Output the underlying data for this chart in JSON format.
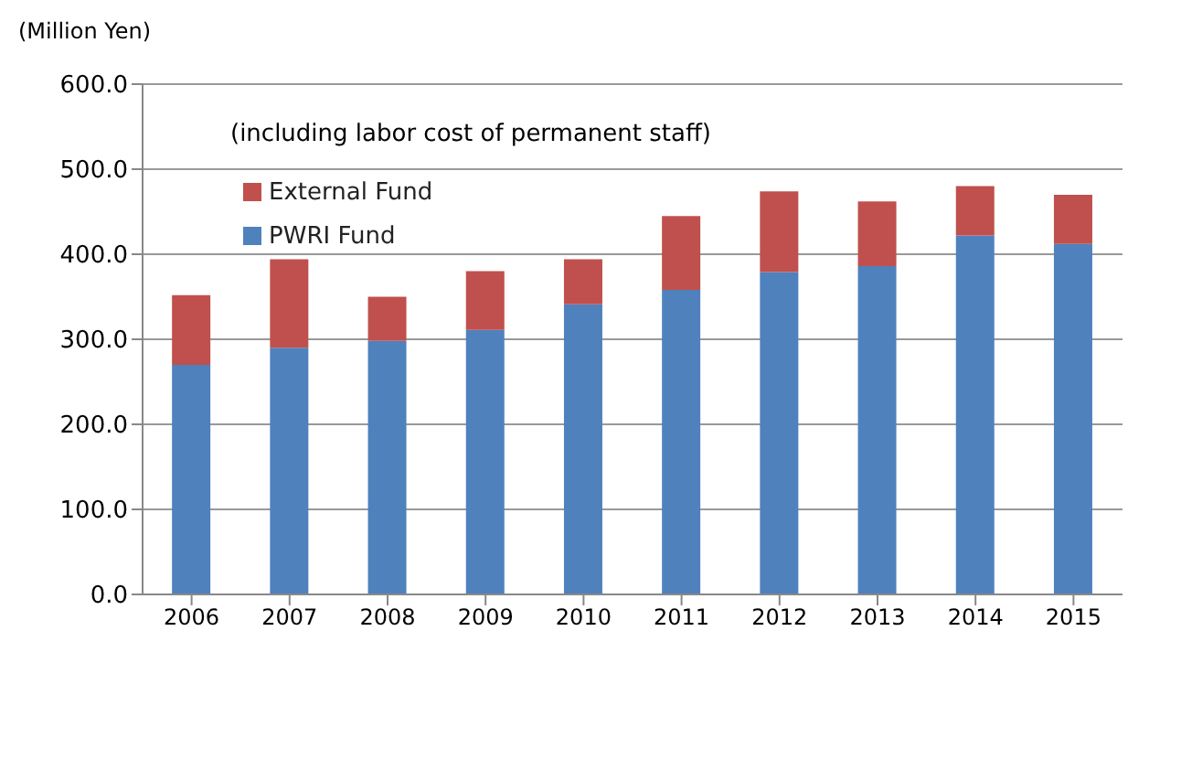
{
  "chart_data": {
    "type": "bar",
    "stacked": true,
    "ylabel": "(Million Yen)",
    "annotations": [
      "(including labor cost of permanent staff)"
    ],
    "categories": [
      "2006",
      "2007",
      "2008",
      "2009",
      "2010",
      "2011",
      "2012",
      "2013",
      "2014",
      "2015"
    ],
    "series": [
      {
        "name": "PWRI Fund",
        "color": "#4f81bd",
        "values": [
          270,
          290,
          298,
          311,
          341,
          358,
          379,
          386,
          422,
          412
        ]
      },
      {
        "name": "External Fund",
        "color": "#c0504d",
        "values": [
          82,
          104,
          52,
          69,
          53,
          87,
          95,
          76,
          58,
          58
        ]
      }
    ],
    "ylim": [
      0,
      600
    ],
    "yticks": [
      {
        "value": 0,
        "label": "0.0"
      },
      {
        "value": 100,
        "label": "100.0"
      },
      {
        "value": 200,
        "label": "200.0"
      },
      {
        "value": 300,
        "label": "300.0"
      },
      {
        "value": 400,
        "label": "400.0"
      },
      {
        "value": 500,
        "label": "500.0"
      },
      {
        "value": 600,
        "label": "600.0"
      }
    ],
    "grid": "y",
    "legend": "top left"
  }
}
